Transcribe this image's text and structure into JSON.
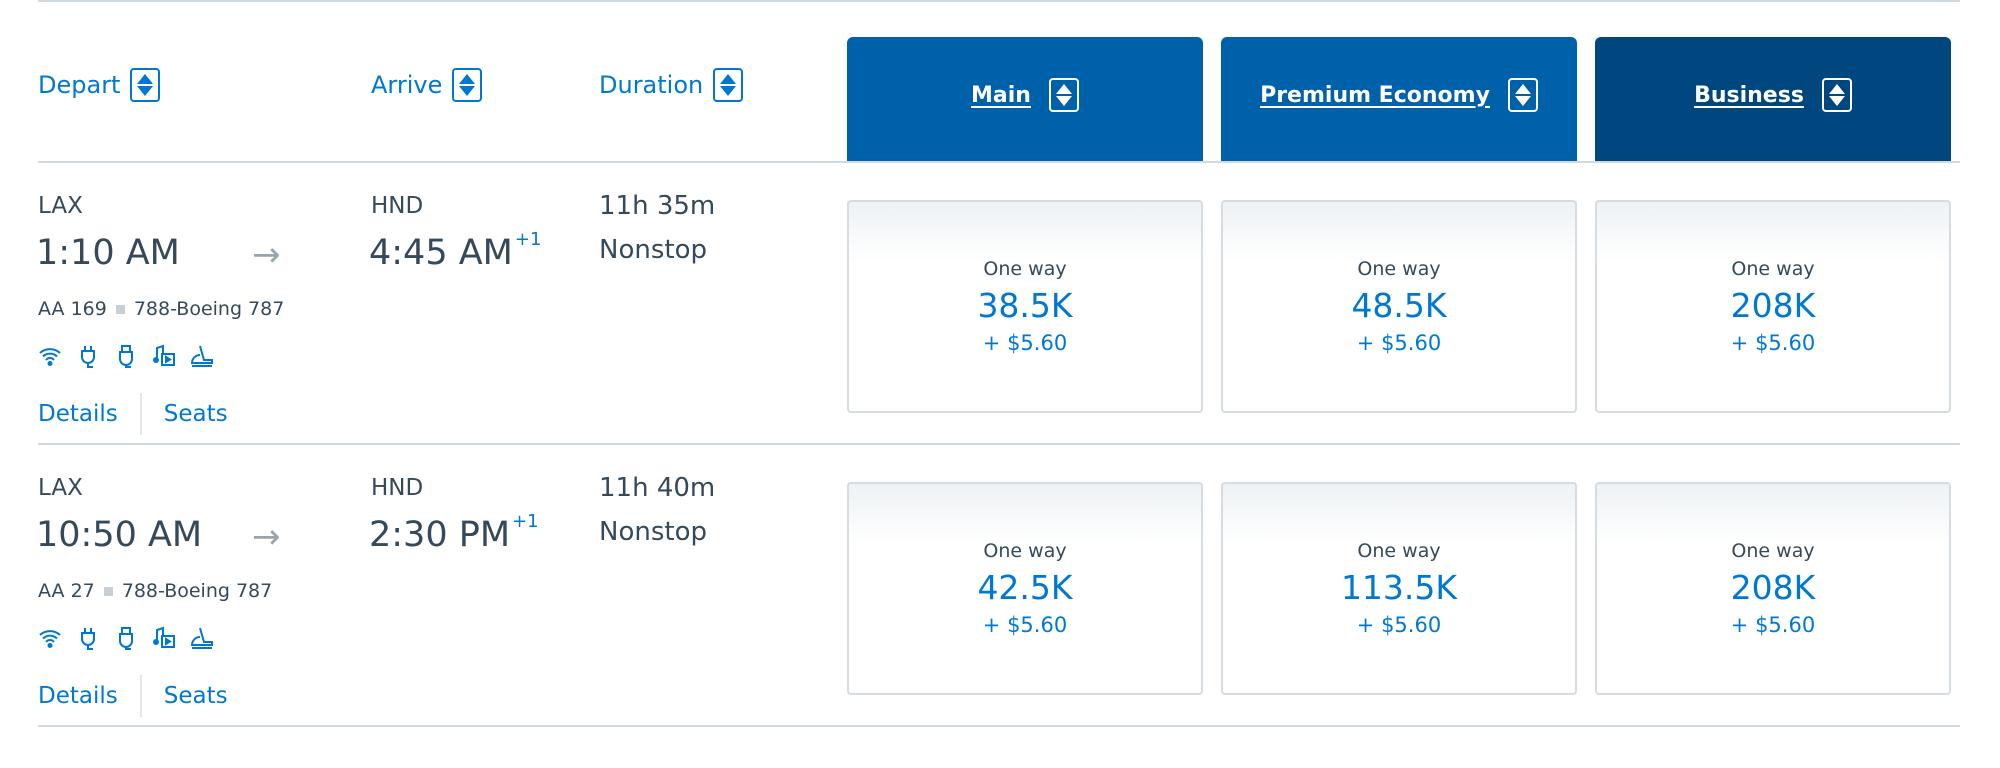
{
  "header": {
    "depart": "Depart",
    "arrive": "Arrive",
    "duration": "Duration",
    "cabins": [
      {
        "label": "Main",
        "color": "#0061ab"
      },
      {
        "label": "Premium Economy",
        "color": "#0061ab"
      },
      {
        "label": "Business",
        "color": "#00467f"
      }
    ]
  },
  "colors": {
    "link": "#0078d2",
    "text": "#36495a"
  },
  "flights": [
    {
      "from": "LAX",
      "depart": "1:10 AM",
      "to": "HND",
      "arrive": "4:45 AM",
      "day_offset": "+1",
      "duration": "11h 35m",
      "stops": "Nonstop",
      "flight": "AA 169",
      "aircraft": "788-Boeing 787",
      "amenities": [
        "wifi-icon",
        "power-outlet-icon",
        "usb-icon",
        "entertainment-icon",
        "lie-flat-seat-icon"
      ],
      "details": "Details",
      "seats": "Seats",
      "fares": [
        {
          "label": "One way",
          "miles": "38.5K",
          "tax": "+ $5.60"
        },
        {
          "label": "One way",
          "miles": "48.5K",
          "tax": "+ $5.60"
        },
        {
          "label": "One way",
          "miles": "208K",
          "tax": "+ $5.60"
        }
      ]
    },
    {
      "from": "LAX",
      "depart": "10:50 AM",
      "to": "HND",
      "arrive": "2:30 PM",
      "day_offset": "+1",
      "duration": "11h 40m",
      "stops": "Nonstop",
      "flight": "AA 27",
      "aircraft": "788-Boeing 787",
      "amenities": [
        "wifi-icon",
        "power-outlet-icon",
        "usb-icon",
        "entertainment-icon",
        "lie-flat-seat-icon"
      ],
      "details": "Details",
      "seats": "Seats",
      "fares": [
        {
          "label": "One way",
          "miles": "42.5K",
          "tax": "+ $5.60"
        },
        {
          "label": "One way",
          "miles": "113.5K",
          "tax": "+ $5.60"
        },
        {
          "label": "One way",
          "miles": "208K",
          "tax": "+ $5.60"
        }
      ]
    }
  ]
}
